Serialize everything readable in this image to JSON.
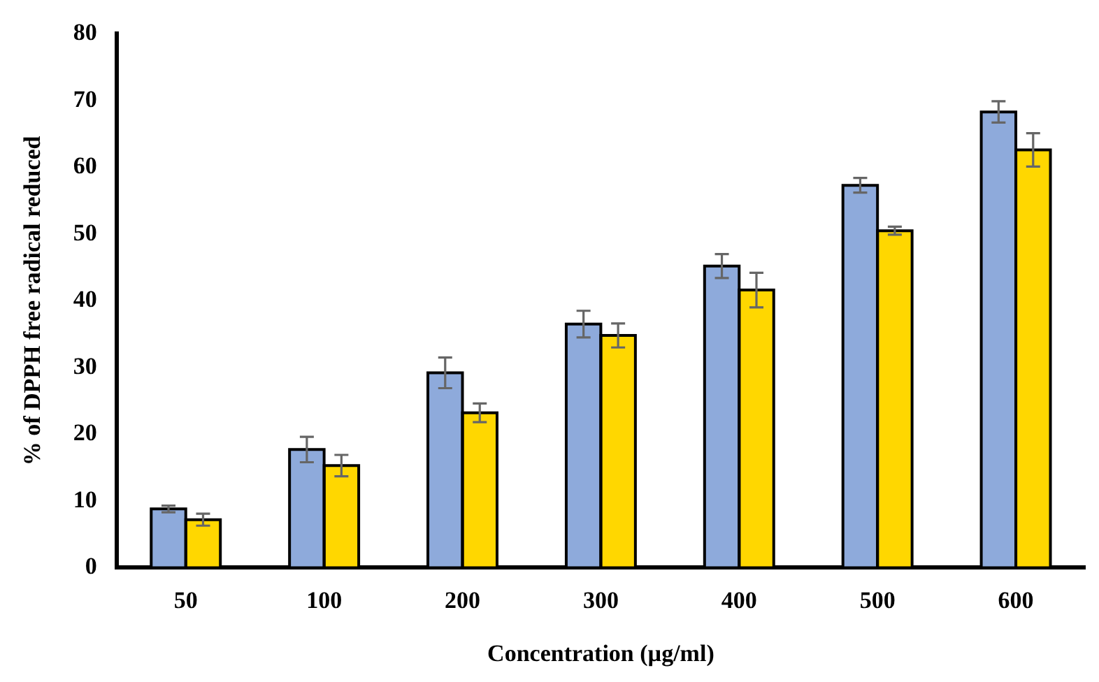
{
  "chart_data": {
    "type": "bar",
    "xlabel": "Concentration (µg/ml)",
    "ylabel": "% of DPPH free radical reduced",
    "categories": [
      "50",
      "100",
      "200",
      "300",
      "400",
      "500",
      "600"
    ],
    "series": [
      {
        "color": "#8eaadb",
        "values": [
          8.8,
          17.7,
          29.2,
          36.5,
          45.2,
          57.3,
          68.3
        ],
        "errors": [
          0.5,
          1.9,
          2.3,
          2.0,
          1.8,
          1.1,
          1.6
        ]
      },
      {
        "color": "#ffd700",
        "values": [
          7.2,
          15.3,
          23.2,
          34.8,
          41.6,
          50.5,
          62.6
        ],
        "errors": [
          0.9,
          1.6,
          1.4,
          1.8,
          2.6,
          0.6,
          2.5
        ]
      }
    ],
    "ylim": [
      0,
      80
    ],
    "yticks": [
      0,
      10,
      20,
      30,
      40,
      50,
      60,
      70,
      80
    ],
    "grid": false,
    "legend": false
  }
}
